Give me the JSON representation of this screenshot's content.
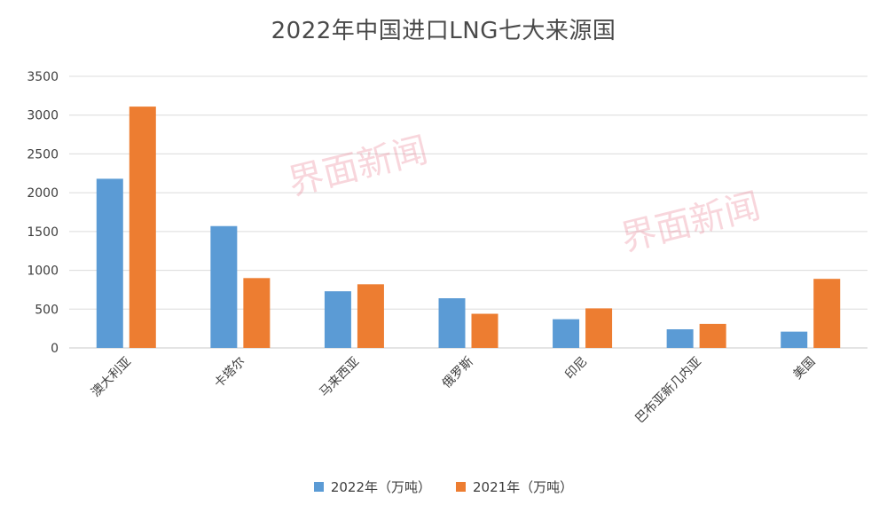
{
  "chart_data": {
    "type": "bar",
    "title": "2022年中国进口LNG七大来源国",
    "xlabel": "",
    "ylabel": "",
    "ylim": [
      0,
      3500
    ],
    "yticks": [
      "0",
      "500",
      "1000",
      "1500",
      "2000",
      "2500",
      "3000",
      "3500"
    ],
    "ytick_values": [
      0,
      500,
      1000,
      1500,
      2000,
      2500,
      3000,
      3500
    ],
    "grid": true,
    "legend_position": "bottom",
    "categories": [
      "澳大利亚",
      "卡塔尔",
      "马来西亚",
      "俄罗斯",
      "印尼",
      "巴布亚新几内亚",
      "美国"
    ],
    "series": [
      {
        "name": "2022年（万吨）",
        "color": "#5b9bd5",
        "values": [
          2180,
          1570,
          730,
          640,
          370,
          240,
          210
        ]
      },
      {
        "name": "2021年（万吨）",
        "color": "#ed7d31",
        "values": [
          3110,
          900,
          820,
          440,
          510,
          310,
          890
        ]
      }
    ]
  },
  "watermarks": [
    "界面新闻",
    "界面新闻"
  ]
}
